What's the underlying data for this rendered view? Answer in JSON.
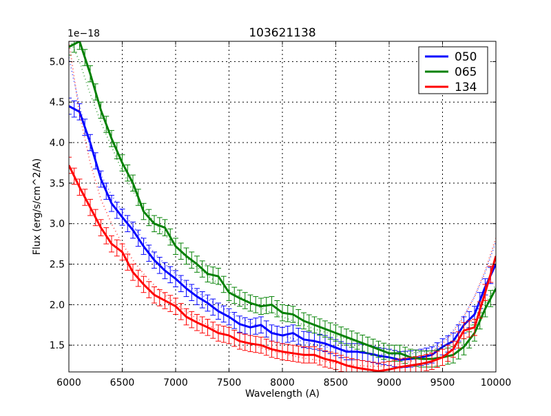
{
  "chart_data": {
    "type": "line",
    "title": "103621138",
    "xlabel": "Wavelength (A)",
    "ylabel": "Flux (erg/s/cm^2/A)",
    "offset_text": "1e−18",
    "xlim": [
      6000,
      10000
    ],
    "ylim": [
      1.17,
      5.25
    ],
    "xticks": [
      6000,
      6500,
      7000,
      7500,
      8000,
      8500,
      9000,
      9500,
      10000
    ],
    "xtick_labels": [
      "6000",
      "6500",
      "7000",
      "7500",
      "8000",
      "8500",
      "9000",
      "9500",
      "10000"
    ],
    "yticks": [
      1.5,
      2.0,
      2.5,
      3.0,
      3.5,
      4.0,
      4.5,
      5.0
    ],
    "ytick_labels": [
      "1.5",
      "2.0",
      "2.5",
      "3.0",
      "3.5",
      "4.0",
      "4.5",
      "5.0"
    ],
    "grid": true,
    "grid_style": "dotted",
    "legend_position": "upper right",
    "x": [
      6000,
      6100,
      6200,
      6300,
      6400,
      6500,
      6600,
      6700,
      6800,
      6900,
      7000,
      7100,
      7200,
      7300,
      7400,
      7500,
      7600,
      7700,
      7800,
      7900,
      8000,
      8100,
      8200,
      8300,
      8400,
      8500,
      8600,
      8700,
      8800,
      8900,
      9000,
      9100,
      9200,
      9300,
      9400,
      9500,
      9600,
      9700,
      9800,
      9900,
      10000
    ],
    "series": [
      {
        "name": "050",
        "color": "#0000ff",
        "values": [
          4.45,
          4.38,
          4.0,
          3.55,
          3.25,
          3.08,
          2.92,
          2.72,
          2.55,
          2.42,
          2.32,
          2.2,
          2.1,
          2.02,
          1.92,
          1.85,
          1.76,
          1.72,
          1.75,
          1.65,
          1.62,
          1.65,
          1.57,
          1.55,
          1.52,
          1.47,
          1.42,
          1.42,
          1.4,
          1.37,
          1.35,
          1.32,
          1.33,
          1.35,
          1.38,
          1.48,
          1.55,
          1.75,
          1.88,
          2.22,
          2.5
        ],
        "error": 0.1,
        "model": [
          5.05,
          4.45,
          3.95,
          3.6,
          3.35,
          3.15,
          2.97,
          2.8,
          2.64,
          2.5,
          2.38,
          2.26,
          2.16,
          2.07,
          1.99,
          1.91,
          1.84,
          1.78,
          1.72,
          1.67,
          1.62,
          1.58,
          1.54,
          1.51,
          1.48,
          1.46,
          1.44,
          1.42,
          1.4,
          1.39,
          1.38,
          1.38,
          1.39,
          1.42,
          1.47,
          1.55,
          1.68,
          1.86,
          2.1,
          2.4,
          2.78
        ]
      },
      {
        "name": "065",
        "color": "#008000",
        "values": [
          5.18,
          5.25,
          4.85,
          4.4,
          4.05,
          3.75,
          3.5,
          3.15,
          3.0,
          2.95,
          2.72,
          2.6,
          2.5,
          2.38,
          2.35,
          2.15,
          2.08,
          2.02,
          1.98,
          2.0,
          1.9,
          1.88,
          1.8,
          1.75,
          1.7,
          1.65,
          1.6,
          1.55,
          1.5,
          1.45,
          1.4,
          1.4,
          1.35,
          1.33,
          1.33,
          1.35,
          1.38,
          1.48,
          1.65,
          1.95,
          2.2
        ],
        "error": 0.1,
        "model": [
          5.3,
          5.0,
          4.6,
          4.25,
          3.95,
          3.65,
          3.4,
          3.2,
          3.02,
          2.86,
          2.72,
          2.58,
          2.46,
          2.36,
          2.26,
          2.18,
          2.1,
          2.03,
          1.96,
          1.9,
          1.85,
          1.8,
          1.75,
          1.7,
          1.66,
          1.62,
          1.58,
          1.54,
          1.5,
          1.47,
          1.44,
          1.42,
          1.41,
          1.41,
          1.43,
          1.47,
          1.55,
          1.65,
          1.8,
          2.0,
          2.25
        ]
      },
      {
        "name": "134",
        "color": "#ff0000",
        "values": [
          3.72,
          3.45,
          3.2,
          2.95,
          2.75,
          2.65,
          2.4,
          2.25,
          2.12,
          2.05,
          1.98,
          1.85,
          1.78,
          1.72,
          1.65,
          1.62,
          1.55,
          1.52,
          1.5,
          1.45,
          1.42,
          1.4,
          1.38,
          1.38,
          1.33,
          1.3,
          1.25,
          1.22,
          1.2,
          1.18,
          1.2,
          1.23,
          1.25,
          1.27,
          1.3,
          1.35,
          1.45,
          1.68,
          1.72,
          2.15,
          2.6
        ],
        "error": 0.1,
        "model": [
          5.25,
          4.35,
          3.75,
          3.3,
          3.0,
          2.75,
          2.55,
          2.38,
          2.24,
          2.12,
          2.01,
          1.91,
          1.83,
          1.75,
          1.68,
          1.62,
          1.56,
          1.51,
          1.47,
          1.43,
          1.4,
          1.37,
          1.34,
          1.32,
          1.3,
          1.28,
          1.26,
          1.25,
          1.24,
          1.24,
          1.25,
          1.27,
          1.3,
          1.35,
          1.42,
          1.52,
          1.66,
          1.85,
          2.1,
          2.42,
          2.82
        ]
      }
    ]
  },
  "legend": {
    "items": [
      {
        "label": "050",
        "color": "#0000ff"
      },
      {
        "label": "065",
        "color": "#008000"
      },
      {
        "label": "134",
        "color": "#ff0000"
      }
    ]
  }
}
